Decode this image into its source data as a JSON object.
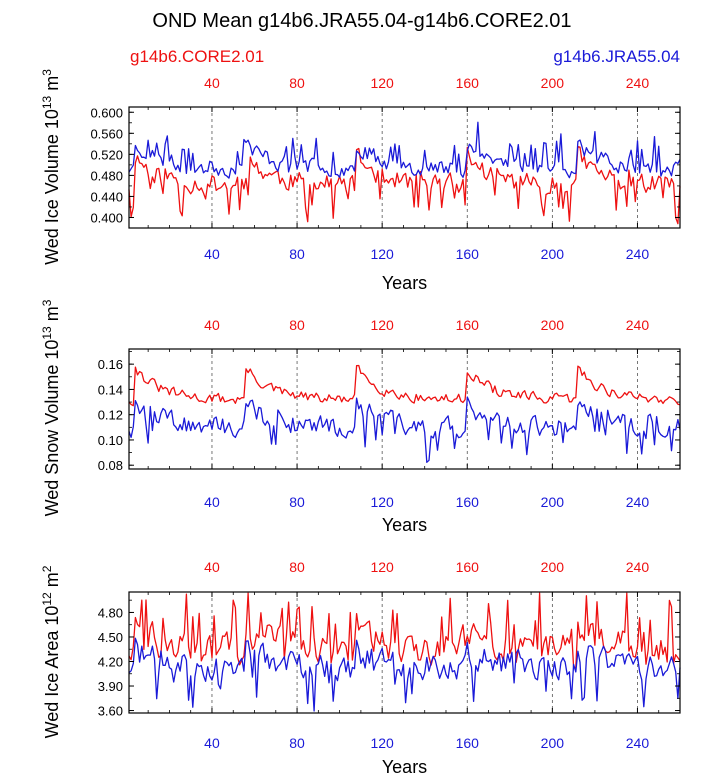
{
  "title": "OND Mean g14b6.JRA55.04-g14b6.CORE2.01",
  "legend_left": "g14b6.CORE2.01",
  "legend_right": "g14b6.JRA55.04",
  "colors": {
    "red": "#ee1111",
    "blue": "#1a1ad8",
    "axis": "#000000",
    "grid": "#555555"
  },
  "chart_data": [
    {
      "type": "line",
      "title": "Wed Ice Volume",
      "ylabel": "Wed Ice Volume 10^13 m^3",
      "ylabel_base": "Wed Ice Volume 10",
      "ylabel_exp": "13",
      "ylabel_unit": " m",
      "ylabel_unit_exp": "3",
      "xlabel": "Years",
      "xlim": [
        1,
        260
      ],
      "ylim": [
        0.38,
        0.61
      ],
      "xticks": [
        40,
        80,
        120,
        160,
        200,
        240
      ],
      "yticks": [
        0.4,
        0.44,
        0.48,
        0.52,
        0.56,
        0.6
      ],
      "ytick_labels": [
        "0.400",
        "0.440",
        "0.480",
        "0.520",
        "0.560",
        "0.600"
      ],
      "series": [
        {
          "name": "g14b6.CORE2.01",
          "color": "#ee1111",
          "base": 0.475,
          "amp": 0.038,
          "noise": 0.055,
          "seed": 11,
          "spikes": -1
        },
        {
          "name": "g14b6.JRA55.04",
          "color": "#1a1ad8",
          "base": 0.505,
          "amp": 0.035,
          "noise": 0.045,
          "seed": 23,
          "spikes": 1
        }
      ]
    },
    {
      "type": "line",
      "title": "Wed Snow Volume",
      "ylabel": "Wed Snow Volume 10^13 m^3",
      "ylabel_base": "Wed Snow Volume 10",
      "ylabel_exp": "13",
      "ylabel_unit": " m",
      "ylabel_unit_exp": "3",
      "xlabel": "Years",
      "xlim": [
        1,
        260
      ],
      "ylim": [
        0.077,
        0.172
      ],
      "xticks": [
        40,
        80,
        120,
        160,
        200,
        240
      ],
      "yticks": [
        0.08,
        0.1,
        0.12,
        0.14,
        0.16
      ],
      "ytick_labels": [
        "0.08",
        "0.10",
        "0.12",
        "0.14",
        "0.16"
      ],
      "series": [
        {
          "name": "g14b6.CORE2.01",
          "color": "#ee1111",
          "base": 0.138,
          "amp": 0.018,
          "noise": 0.012,
          "seed": 31,
          "spikes": 0
        },
        {
          "name": "g14b6.JRA55.04",
          "color": "#1a1ad8",
          "base": 0.115,
          "amp": 0.014,
          "noise": 0.022,
          "seed": 47,
          "spikes": -1
        }
      ]
    },
    {
      "type": "line",
      "title": "Wed Ice Area",
      "ylabel": "Wed Ice Area 10^12 m^2",
      "ylabel_base": "Wed Ice Area 10",
      "ylabel_exp": "12",
      "ylabel_unit": " m",
      "ylabel_unit_exp": "2",
      "xlabel": "Years",
      "xlim": [
        1,
        260
      ],
      "ylim": [
        3.57,
        5.05
      ],
      "xticks": [
        40,
        80,
        120,
        160,
        200,
        240
      ],
      "yticks": [
        3.6,
        3.9,
        4.2,
        4.5,
        4.8
      ],
      "ytick_labels": [
        "3.60",
        "3.90",
        "4.20",
        "4.50",
        "4.80"
      ],
      "series": [
        {
          "name": "g14b6.CORE2.01",
          "color": "#ee1111",
          "base": 4.42,
          "amp": 0.2,
          "noise": 0.55,
          "seed": 59,
          "spikes": 1
        },
        {
          "name": "g14b6.JRA55.04",
          "color": "#1a1ad8",
          "base": 4.18,
          "amp": 0.15,
          "noise": 0.45,
          "seed": 71,
          "spikes": -1
        }
      ]
    }
  ]
}
